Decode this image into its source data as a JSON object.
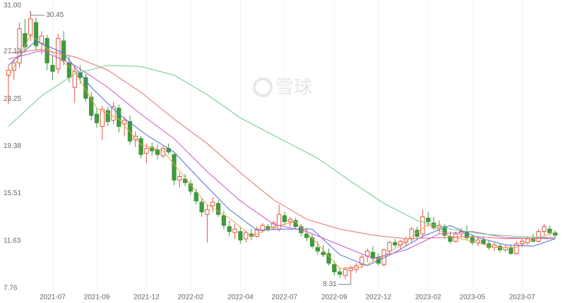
{
  "chart_data": {
    "type": "candlestick",
    "watermark": "雪球",
    "ylim": [
      7.76,
      31.0
    ],
    "yticks": [
      {
        "value": 31.0,
        "label": "31.00"
      },
      27.13,
      23.25,
      19.38,
      15.51,
      11.63,
      7.76
    ],
    "grid": false,
    "up_color": "#e0564a",
    "down_color": "#3f9a3c",
    "categories": [
      null,
      null,
      null,
      null,
      null,
      null,
      null,
      null,
      "2021-07",
      null,
      null,
      null,
      null,
      null,
      null,
      null,
      "2021-09",
      null,
      null,
      null,
      null,
      null,
      null,
      null,
      null,
      "2021-12",
      null,
      null,
      null,
      null,
      null,
      null,
      null,
      "2022-02",
      null,
      null,
      null,
      null,
      null,
      null,
      null,
      null,
      "2022-04",
      null,
      null,
      null,
      null,
      null,
      null,
      null,
      "2022-07",
      null,
      null,
      null,
      null,
      null,
      null,
      null,
      null,
      "2022-09",
      null,
      null,
      null,
      null,
      null,
      null,
      null,
      "2022-12",
      null,
      null,
      null,
      null,
      null,
      null,
      null,
      null,
      "2023-02",
      null,
      null,
      null,
      null,
      null,
      null,
      null,
      "2023-05",
      null,
      null,
      null,
      null,
      null,
      null,
      null,
      null,
      "2023-07",
      null,
      null,
      null,
      null,
      null,
      null
    ],
    "ohlc": [
      [
        25.2,
        26.0,
        22.8,
        25.6
      ],
      [
        25.6,
        26.5,
        24.8,
        26.2
      ],
      [
        26.2,
        29.5,
        25.8,
        29.0
      ],
      [
        28.6,
        29.8,
        27.0,
        27.5
      ],
      [
        28.5,
        30.45,
        28.0,
        29.8
      ],
      [
        29.5,
        29.9,
        27.2,
        27.6
      ],
      [
        27.8,
        28.8,
        26.9,
        28.4
      ],
      [
        28.2,
        28.5,
        25.6,
        26.2
      ],
      [
        26.0,
        26.8,
        24.8,
        25.5
      ],
      [
        25.7,
        28.6,
        25.3,
        28.2
      ],
      [
        28.0,
        28.8,
        26.0,
        26.4
      ],
      [
        26.2,
        26.8,
        24.6,
        25.0
      ],
      [
        24.2,
        25.9,
        22.9,
        25.5
      ],
      [
        25.4,
        26.0,
        24.5,
        25.0
      ],
      [
        25.0,
        25.3,
        23.0,
        23.3
      ],
      [
        23.4,
        23.8,
        21.5,
        21.9
      ],
      [
        22.0,
        22.5,
        20.9,
        21.3
      ],
      [
        21.0,
        22.7,
        19.9,
        22.4
      ],
      [
        22.3,
        22.6,
        21.0,
        21.4
      ],
      [
        21.5,
        23.0,
        21.2,
        22.6
      ],
      [
        22.5,
        22.8,
        20.5,
        21.0
      ],
      [
        21.2,
        21.8,
        20.2,
        21.5
      ],
      [
        21.4,
        21.9,
        19.5,
        19.8
      ],
      [
        19.9,
        20.6,
        19.3,
        20.2
      ],
      [
        20.0,
        20.2,
        18.4,
        18.7
      ],
      [
        18.8,
        19.6,
        18.0,
        19.2
      ],
      [
        19.3,
        19.7,
        18.6,
        19.0
      ],
      [
        19.1,
        19.5,
        18.3,
        18.7
      ],
      [
        18.6,
        19.4,
        18.4,
        19.2
      ],
      [
        19.2,
        19.6,
        18.7,
        18.9
      ],
      [
        18.7,
        18.8,
        16.2,
        16.6
      ],
      [
        16.6,
        17.2,
        16.0,
        16.9
      ],
      [
        16.7,
        17.1,
        16.1,
        16.4
      ],
      [
        16.3,
        16.6,
        15.4,
        15.7
      ],
      [
        15.6,
        15.9,
        14.6,
        14.9
      ],
      [
        14.8,
        15.1,
        13.6,
        14.0
      ],
      [
        13.8,
        14.6,
        11.5,
        14.2
      ],
      [
        14.5,
        15.2,
        14.0,
        14.8
      ],
      [
        14.7,
        15.0,
        13.6,
        13.8
      ],
      [
        13.7,
        14.1,
        12.6,
        12.9
      ],
      [
        12.8,
        13.3,
        12.0,
        12.4
      ],
      [
        12.3,
        13.0,
        11.8,
        12.6
      ],
      [
        12.4,
        12.8,
        11.4,
        11.7
      ],
      [
        11.8,
        12.5,
        11.5,
        12.3
      ],
      [
        12.2,
        12.6,
        11.7,
        12.0
      ],
      [
        12.0,
        12.8,
        11.9,
        12.6
      ],
      [
        12.5,
        13.1,
        12.3,
        12.9
      ],
      [
        12.8,
        13.0,
        12.4,
        12.6
      ],
      [
        12.7,
        13.3,
        12.5,
        13.1
      ],
      [
        12.6,
        14.6,
        12.4,
        13.8
      ],
      [
        13.7,
        14.0,
        12.9,
        13.2
      ],
      [
        13.2,
        13.6,
        12.8,
        13.4
      ],
      [
        13.3,
        13.5,
        12.6,
        12.8
      ],
      [
        12.8,
        13.0,
        12.0,
        12.3
      ],
      [
        12.2,
        12.7,
        11.6,
        11.9
      ],
      [
        11.9,
        12.2,
        11.0,
        11.2
      ],
      [
        11.1,
        11.6,
        10.5,
        10.8
      ],
      [
        10.7,
        11.3,
        10.3,
        10.5
      ],
      [
        10.6,
        11.0,
        9.6,
        9.8
      ],
      [
        9.7,
        10.0,
        8.8,
        9.1
      ],
      [
        9.1,
        9.4,
        8.6,
        8.9
      ],
      [
        8.8,
        9.5,
        8.5,
        9.3
      ],
      [
        9.2,
        9.6,
        8.31,
        9.4
      ],
      [
        9.3,
        9.8,
        9.0,
        9.6
      ],
      [
        9.7,
        10.5,
        9.4,
        10.3
      ],
      [
        10.4,
        11.0,
        9.9,
        10.8
      ],
      [
        10.7,
        11.2,
        10.0,
        10.2
      ],
      [
        10.3,
        10.6,
        9.6,
        9.8
      ],
      [
        9.7,
        11.0,
        9.5,
        10.9
      ],
      [
        10.8,
        11.6,
        10.6,
        11.5
      ],
      [
        11.5,
        11.8,
        11.1,
        11.3
      ],
      [
        11.3,
        11.7,
        10.9,
        11.6
      ],
      [
        11.5,
        12.0,
        11.2,
        11.8
      ],
      [
        11.8,
        12.8,
        11.5,
        12.6
      ],
      [
        12.5,
        12.8,
        11.8,
        12.0
      ],
      [
        12.2,
        14.2,
        11.9,
        13.6
      ],
      [
        13.5,
        14.0,
        12.8,
        13.2
      ],
      [
        13.1,
        13.6,
        12.5,
        12.7
      ],
      [
        12.7,
        13.3,
        12.2,
        12.9
      ],
      [
        12.8,
        13.0,
        11.8,
        12.1
      ],
      [
        12.0,
        12.4,
        11.4,
        11.6
      ],
      [
        11.6,
        12.4,
        11.5,
        12.2
      ],
      [
        12.2,
        12.7,
        11.9,
        12.4
      ],
      [
        12.4,
        12.9,
        11.7,
        11.9
      ],
      [
        11.9,
        12.1,
        11.3,
        11.5
      ],
      [
        11.5,
        11.9,
        11.2,
        11.7
      ],
      [
        11.7,
        12.0,
        11.3,
        11.4
      ],
      [
        11.4,
        11.7,
        10.9,
        11.1
      ],
      [
        11.1,
        11.5,
        10.8,
        11.3
      ],
      [
        11.2,
        11.4,
        10.7,
        10.9
      ],
      [
        10.9,
        11.3,
        10.7,
        11.1
      ],
      [
        11.1,
        11.3,
        10.5,
        10.6
      ],
      [
        10.6,
        11.6,
        10.5,
        11.4
      ],
      [
        11.4,
        11.8,
        11.1,
        11.6
      ],
      [
        11.5,
        12.0,
        11.3,
        11.8
      ],
      [
        11.8,
        12.2,
        11.5,
        11.6
      ],
      [
        11.6,
        12.6,
        11.5,
        12.4
      ],
      [
        12.4,
        13.0,
        12.1,
        12.8
      ],
      [
        12.6,
        12.9,
        12.1,
        12.3
      ],
      [
        12.3,
        12.5,
        11.8,
        12.1
      ]
    ],
    "annotations": [
      {
        "text": "30.45",
        "candle": 4
      },
      {
        "text": "8.31",
        "candle": 62
      }
    ],
    "lines": [
      {
        "color": "#f0a04b",
        "x": [
          0,
          4,
          8,
          12,
          16,
          20,
          24,
          28,
          32,
          36,
          40,
          44,
          48,
          52,
          56,
          60,
          64,
          68,
          72,
          76,
          80,
          84,
          88,
          92,
          96,
          99
        ],
        "values": [
          25.0,
          28.5,
          27.0,
          25.5,
          22.5,
          21.6,
          19.5,
          19.0,
          16.8,
          14.6,
          13.5,
          12.0,
          12.8,
          13.2,
          11.4,
          9.4,
          9.5,
          10.4,
          11.6,
          13.0,
          12.0,
          11.6,
          11.1,
          11.1,
          11.9,
          12.3
        ]
      },
      {
        "color": "#4a6bd8",
        "x": [
          0,
          5,
          10,
          15,
          20,
          25,
          30,
          35,
          40,
          45,
          50,
          55,
          60,
          65,
          70,
          75,
          80,
          85,
          90,
          95,
          99
        ],
        "values": [
          26.0,
          28.0,
          27.0,
          24.2,
          22.0,
          20.3,
          18.9,
          16.5,
          14.2,
          12.5,
          12.6,
          12.6,
          10.5,
          9.6,
          10.7,
          12.0,
          12.9,
          11.9,
          11.3,
          11.2,
          11.8
        ]
      },
      {
        "color": "#c857c8",
        "x": [
          0,
          6,
          12,
          18,
          24,
          30,
          36,
          42,
          48,
          54,
          60,
          66,
          72,
          78,
          84,
          90,
          99
        ],
        "values": [
          26.5,
          27.2,
          26.0,
          24.2,
          22.0,
          20.0,
          17.3,
          14.9,
          13.0,
          12.4,
          11.3,
          10.2,
          10.9,
          12.2,
          12.4,
          11.9,
          11.8
        ]
      },
      {
        "color": "#e8706a",
        "x": [
          0,
          6,
          12,
          18,
          24,
          30,
          36,
          42,
          48,
          54,
          60,
          66,
          72,
          78,
          84,
          90,
          99
        ],
        "values": [
          27.0,
          27.3,
          26.7,
          25.6,
          23.8,
          21.6,
          19.6,
          17.2,
          15.0,
          13.4,
          12.6,
          12.1,
          11.8,
          11.9,
          12.0,
          11.8,
          11.9
        ]
      },
      {
        "color": "#6cc98a",
        "x": [
          0,
          6,
          12,
          18,
          24,
          30,
          36,
          42,
          50,
          56,
          62,
          68,
          74,
          80,
          86,
          92,
          99
        ],
        "values": [
          21.0,
          23.5,
          25.3,
          26.0,
          25.9,
          25.2,
          23.6,
          21.7,
          19.8,
          18.4,
          16.5,
          14.7,
          13.3,
          12.6,
          12.2,
          12.0,
          11.9
        ]
      }
    ]
  }
}
